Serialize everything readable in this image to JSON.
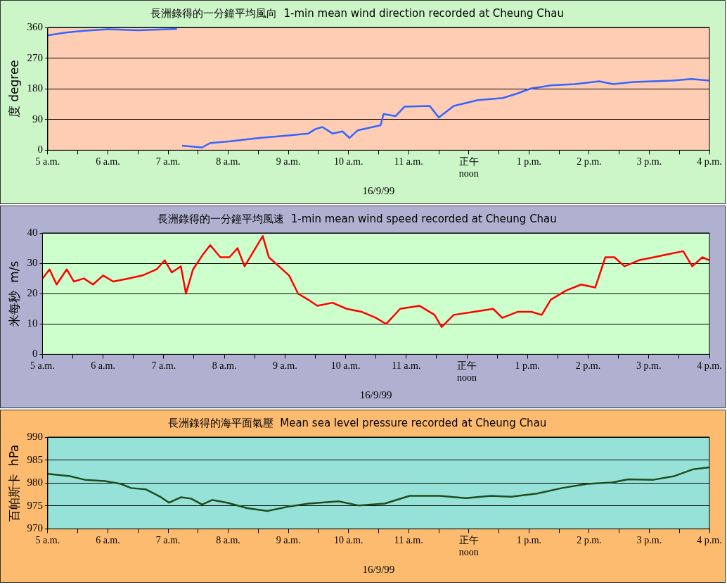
{
  "chart_data": [
    {
      "type": "line",
      "title": "長洲錄得的一分鐘平均風向  1-min mean wind direction recorded at Cheung Chau",
      "xlabel": "16/9/99",
      "ylabel": "度 degree",
      "xlim": [
        "--09-16T05:00",
        "--09-16T16:00"
      ],
      "xticks": [
        {
          "value": "--09-16T05:00",
          "label": "5 a.m."
        },
        {
          "value": "--09-16T05:30",
          "label": null
        },
        {
          "value": "--09-16T06:00",
          "label": "6 a.m."
        },
        {
          "value": "--09-16T06:30",
          "label": null
        },
        {
          "value": "--09-16T07:00",
          "label": "7 a.m."
        },
        {
          "value": "--09-16T07:30",
          "label": null
        },
        {
          "value": "--09-16T08:00",
          "label": "8 a.m."
        },
        {
          "value": "--09-16T08:30",
          "label": null
        },
        {
          "value": "--09-16T09:00",
          "label": "9 a.m."
        },
        {
          "value": "--09-16T09:30",
          "label": null
        },
        {
          "value": "--09-16T10:00",
          "label": "10 a.m."
        },
        {
          "value": "--09-16T10:30",
          "label": null
        },
        {
          "value": "--09-16T11:00",
          "label": "11 a.m."
        },
        {
          "value": "--09-16T11:30",
          "label": null
        },
        {
          "value": "--09-16T12:00",
          "label": "正午\nnoon"
        },
        {
          "value": "--09-16T12:30",
          "label": null
        },
        {
          "value": "--09-16T13:00",
          "label": "1 p.m."
        },
        {
          "value": "--09-16T13:30",
          "label": null
        },
        {
          "value": "--09-16T14:00",
          "label": "2 p.m."
        },
        {
          "value": "--09-16T14:30",
          "label": null
        },
        {
          "value": "--09-16T15:00",
          "label": "3 p.m."
        },
        {
          "value": "--09-16T15:30",
          "label": null
        },
        {
          "value": "--09-16T16:00",
          "label": "4 p.m."
        }
      ],
      "ylim": [
        0,
        360
      ],
      "yticks": [
        0,
        90,
        180,
        270,
        360
      ],
      "grid": "y",
      "series": [
        {
          "color": "#3366ff",
          "x": [
            "--09-16T05:00",
            "--09-16T05:18",
            "--09-16T05:36",
            "--09-16T06:00",
            "--09-16T06:30",
            "--09-16T07:00",
            "--09-16T07:09",
            "--09-16T07:12",
            "--09-16T07:14",
            "--09-16T07:34",
            "--09-16T07:42",
            "--09-16T08:02",
            "--09-16T08:31",
            "--09-16T09:00",
            "--09-16T09:20",
            "--09-16T09:27",
            "--09-16T09:34",
            "--09-16T09:44",
            "--09-16T09:54",
            "--09-16T10:01",
            "--09-16T10:09",
            "--09-16T10:32",
            "--09-16T10:35",
            "--09-16T10:47",
            "--09-16T10:56",
            "--09-16T11:21",
            "--09-16T11:30",
            "--09-16T11:45",
            "--09-16T12:09",
            "--09-16T12:34",
            "--09-16T12:48",
            "--09-16T13:02",
            "--09-16T13:22",
            "--09-16T13:46",
            "--09-16T14:10",
            "--09-16T14:24",
            "--09-16T14:44",
            "--09-16T15:23",
            "--09-16T15:42",
            "--09-16T16:00"
          ],
          "values": [
            337,
            345,
            350,
            355,
            352,
            355,
            356,
            null,
            13,
            8,
            21,
            26,
            36,
            43,
            49,
            62,
            68,
            49,
            55,
            36,
            58,
            73,
            106,
            100,
            128,
            130,
            96,
            130,
            147,
            153,
            166,
            181,
            190,
            194,
            202,
            194,
            200,
            204,
            209,
            204
          ]
        }
      ]
    },
    {
      "type": "line",
      "title": "長洲錄得的一分鐘平均風速  1-min mean wind speed recorded at Cheung Chau",
      "xlabel": "16/9/99",
      "ylabel": "米每秒  m/s",
      "xlim": [
        "--09-16T05:00",
        "--09-16T16:00"
      ],
      "xticks": [
        {
          "value": "--09-16T05:00",
          "label": "5 a.m."
        },
        {
          "value": "--09-16T05:30",
          "label": null
        },
        {
          "value": "--09-16T06:00",
          "label": "6 a.m."
        },
        {
          "value": "--09-16T06:30",
          "label": null
        },
        {
          "value": "--09-16T07:00",
          "label": "7 a.m."
        },
        {
          "value": "--09-16T07:30",
          "label": null
        },
        {
          "value": "--09-16T08:00",
          "label": "8 a.m."
        },
        {
          "value": "--09-16T08:30",
          "label": null
        },
        {
          "value": "--09-16T09:00",
          "label": "9 a.m."
        },
        {
          "value": "--09-16T09:30",
          "label": null
        },
        {
          "value": "--09-16T10:00",
          "label": "10 a.m."
        },
        {
          "value": "--09-16T10:30",
          "label": null
        },
        {
          "value": "--09-16T11:00",
          "label": "11 a.m."
        },
        {
          "value": "--09-16T11:30",
          "label": null
        },
        {
          "value": "--09-16T12:00",
          "label": "正午\nnoon"
        },
        {
          "value": "--09-16T12:30",
          "label": null
        },
        {
          "value": "--09-16T13:00",
          "label": "1 p.m."
        },
        {
          "value": "--09-16T13:30",
          "label": null
        },
        {
          "value": "--09-16T14:00",
          "label": "2 p.m."
        },
        {
          "value": "--09-16T14:30",
          "label": null
        },
        {
          "value": "--09-16T15:00",
          "label": "3 p.m."
        },
        {
          "value": "--09-16T15:30",
          "label": null
        },
        {
          "value": "--09-16T16:00",
          "label": "4 p.m."
        }
      ],
      "ylim": [
        0,
        40
      ],
      "yticks": [
        0,
        10,
        20,
        30,
        40
      ],
      "grid": "y",
      "series": [
        {
          "color": "#ff0000",
          "x": [
            "--09-16T05:00",
            "--09-16T05:07",
            "--09-16T05:14",
            "--09-16T05:24",
            "--09-16T05:31",
            "--09-16T05:41",
            "--09-16T05:50",
            "--09-16T06:00",
            "--09-16T06:10",
            "--09-16T06:25",
            "--09-16T06:39",
            "--09-16T06:53",
            "--09-16T07:01",
            "--09-16T07:08",
            "--09-16T07:17",
            "--09-16T07:22",
            "--09-16T07:29",
            "--09-16T07:39",
            "--09-16T07:46",
            "--09-16T07:56",
            "--09-16T08:05",
            "--09-16T08:13",
            "--09-16T08:20",
            "--09-16T08:29",
            "--09-16T08:38",
            "--09-16T08:44",
            "--09-16T08:54",
            "--09-16T09:04",
            "--09-16T09:13",
            "--09-16T09:23",
            "--09-16T09:32",
            "--09-16T09:47",
            "--09-16T10:01",
            "--09-16T10:16",
            "--09-16T10:30",
            "--09-16T10:40",
            "--09-16T10:54",
            "--09-16T11:13",
            "--09-16T11:28",
            "--09-16T11:35",
            "--09-16T11:47",
            "--09-16T12:07",
            "--09-16T12:26",
            "--09-16T12:35",
            "--09-16T12:50",
            "--09-16T13:04",
            "--09-16T13:14",
            "--09-16T13:23",
            "--09-16T13:38",
            "--09-16T13:53",
            "--09-16T14:07",
            "--09-16T14:17",
            "--09-16T14:26",
            "--09-16T14:36",
            "--09-16T14:50",
            "--09-16T15:05",
            "--09-16T15:19",
            "--09-16T15:34",
            "--09-16T15:43",
            "--09-16T15:53",
            "--09-16T16:00"
          ],
          "values": [
            25,
            28,
            23,
            28,
            24,
            25,
            23,
            26,
            24,
            25,
            26,
            28,
            31,
            27,
            29,
            20,
            28,
            33,
            36,
            32,
            32,
            35,
            29,
            34,
            39,
            32,
            29,
            26,
            20,
            18,
            16,
            17,
            15,
            14,
            12,
            10,
            15,
            16,
            13,
            9,
            13,
            14,
            15,
            12,
            14,
            14,
            13,
            18,
            21,
            23,
            22,
            32,
            32,
            29,
            31,
            32,
            33,
            34,
            29,
            32,
            31
          ]
        }
      ]
    },
    {
      "type": "line",
      "title": "長洲錄得的海平面氣壓  Mean sea level pressure recorded at Cheung Chau",
      "xlabel": "16/9/99",
      "ylabel": "百帕斯卡  hPa",
      "xlim": [
        "--09-16T05:00",
        "--09-16T16:00"
      ],
      "xticks": [
        {
          "value": "--09-16T05:00",
          "label": "5 a.m."
        },
        {
          "value": "--09-16T05:30",
          "label": null
        },
        {
          "value": "--09-16T06:00",
          "label": "6 a.m."
        },
        {
          "value": "--09-16T06:30",
          "label": null
        },
        {
          "value": "--09-16T07:00",
          "label": "7 a.m."
        },
        {
          "value": "--09-16T07:30",
          "label": null
        },
        {
          "value": "--09-16T08:00",
          "label": "8 a.m."
        },
        {
          "value": "--09-16T08:30",
          "label": null
        },
        {
          "value": "--09-16T09:00",
          "label": "9 a.m."
        },
        {
          "value": "--09-16T09:30",
          "label": null
        },
        {
          "value": "--09-16T10:00",
          "label": "10 a.m."
        },
        {
          "value": "--09-16T10:30",
          "label": null
        },
        {
          "value": "--09-16T11:00",
          "label": "11 a.m."
        },
        {
          "value": "--09-16T11:30",
          "label": null
        },
        {
          "value": "--09-16T12:00",
          "label": "正午\nnoon"
        },
        {
          "value": "--09-16T12:30",
          "label": null
        },
        {
          "value": "--09-16T13:00",
          "label": "1 p.m."
        },
        {
          "value": "--09-16T13:30",
          "label": null
        },
        {
          "value": "--09-16T14:00",
          "label": "2 p.m."
        },
        {
          "value": "--09-16T14:30",
          "label": null
        },
        {
          "value": "--09-16T15:00",
          "label": "3 p.m."
        },
        {
          "value": "--09-16T15:30",
          "label": null
        },
        {
          "value": "--09-16T16:00",
          "label": "4 p.m."
        }
      ],
      "ylim": [
        970,
        990
      ],
      "yticks": [
        970,
        975,
        980,
        985,
        990
      ],
      "grid": "y",
      "series": [
        {
          "color": "#1f4d1f",
          "x": [
            "--09-16T05:00",
            "--09-16T05:22",
            "--09-16T05:37",
            "--09-16T05:57",
            "--09-16T06:13",
            "--09-16T06:23",
            "--09-16T06:38",
            "--09-16T06:53",
            "--09-16T07:01",
            "--09-16T07:13",
            "--09-16T07:23",
            "--09-16T07:34",
            "--09-16T07:44",
            "--09-16T07:59",
            "--09-16T08:19",
            "--09-16T08:39",
            "--09-16T08:59",
            "--09-16T09:20",
            "--09-16T09:50",
            "--09-16T10:10",
            "--09-16T10:36",
            "--09-16T11:01",
            "--09-16T11:31",
            "--09-16T11:57",
            "--09-16T12:22",
            "--09-16T12:42",
            "--09-16T13:08",
            "--09-16T13:33",
            "--09-16T13:58",
            "--09-16T14:23",
            "--09-16T14:39",
            "--09-16T15:04",
            "--09-16T15:25",
            "--09-16T15:44",
            "--09-16T16:00"
          ],
          "values": [
            982,
            981.5,
            980.7,
            980.4,
            979.8,
            978.9,
            978.6,
            976.9,
            975.7,
            976.9,
            976.6,
            975.3,
            976.3,
            975.7,
            974.5,
            973.9,
            974.8,
            975.5,
            976,
            975.1,
            975.5,
            977.2,
            977.2,
            976.7,
            977.2,
            977,
            977.7,
            978.9,
            979.8,
            980.1,
            980.8,
            980.7,
            981.5,
            983,
            983.4
          ]
        }
      ]
    }
  ]
}
